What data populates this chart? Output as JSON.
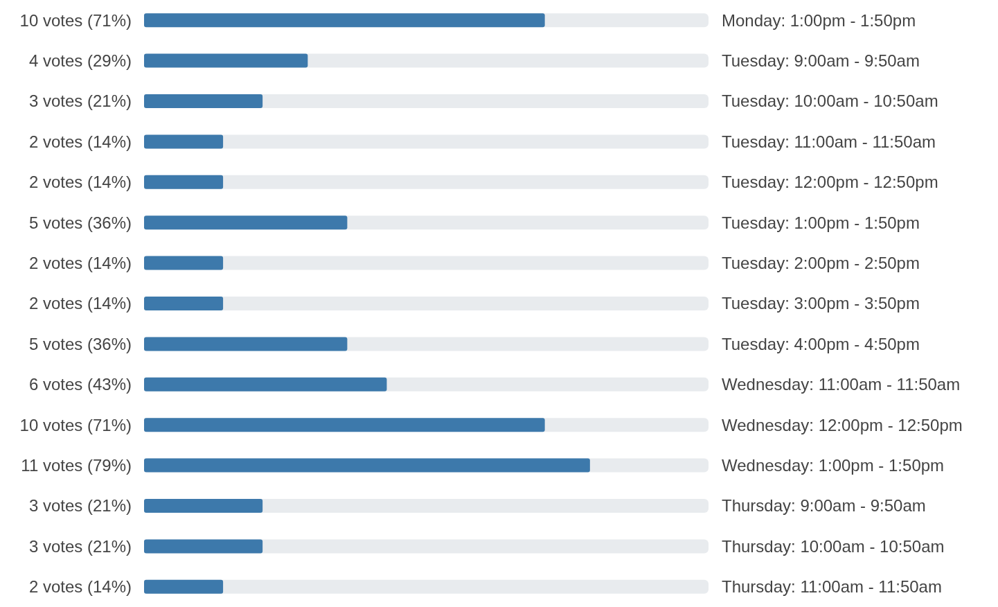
{
  "chart_data": {
    "type": "bar",
    "orientation": "horizontal",
    "categories": [
      "Monday: 1:00pm - 1:50pm",
      "Tuesday: 9:00am - 9:50am",
      "Tuesday: 10:00am - 10:50am",
      "Tuesday: 11:00am - 11:50am",
      "Tuesday: 12:00pm - 12:50pm",
      "Tuesday: 1:00pm - 1:50pm",
      "Tuesday: 2:00pm - 2:50pm",
      "Tuesday: 3:00pm - 3:50pm",
      "Tuesday: 4:00pm - 4:50pm",
      "Wednesday: 11:00am - 11:50am",
      "Wednesday: 12:00pm - 12:50pm",
      "Wednesday: 1:00pm - 1:50pm",
      "Thursday: 9:00am - 9:50am",
      "Thursday: 10:00am - 10:50am",
      "Thursday: 11:00am - 11:50am"
    ],
    "values": [
      71,
      29,
      21,
      14,
      14,
      36,
      14,
      14,
      36,
      43,
      71,
      79,
      21,
      21,
      14
    ],
    "value_labels": [
      "10 votes (71%)",
      "4 votes (29%)",
      "3 votes (21%)",
      "2 votes (14%)",
      "2 votes (14%)",
      "5 votes (36%)",
      "2 votes (14%)",
      "2 votes (14%)",
      "5 votes (36%)",
      "6 votes (43%)",
      "10 votes (71%)",
      "11 votes (79%)",
      "3 votes (21%)",
      "3 votes (21%)",
      "2 votes (14%)"
    ],
    "color": "#3d79ab",
    "xlim": [
      0,
      100
    ]
  }
}
